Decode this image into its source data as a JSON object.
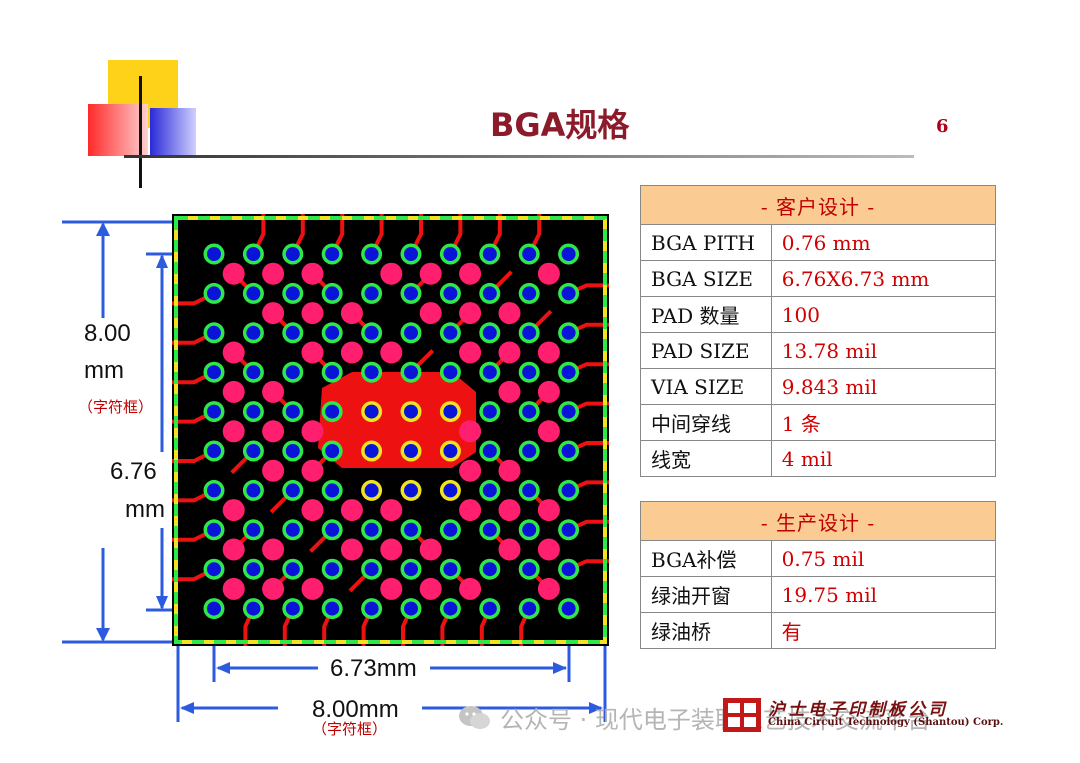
{
  "header": {
    "title": "BGA规格",
    "page_number": "6"
  },
  "dimensions": {
    "outer_height": "8.00",
    "outer_height_unit": "mm",
    "outer_height_note": "（字符框）",
    "inner_height": "6.76",
    "inner_height_unit": "mm",
    "inner_width": "6.73mm",
    "outer_width": "8.00mm",
    "outer_width_note": "（字符框）"
  },
  "customer_design": {
    "header": "- 客户设计 -",
    "rows": [
      {
        "key": "BGA PITH",
        "value": "0.76 mm"
      },
      {
        "key": "BGA SIZE",
        "value": "6.76X6.73 mm"
      },
      {
        "key": "PAD 数量",
        "value": "100"
      },
      {
        "key": "PAD SIZE",
        "value": "13.78 mil"
      },
      {
        "key": "VIA SIZE",
        "value": "9.843 mil"
      },
      {
        "key": "中间穿线",
        "value": "1 条"
      },
      {
        "key": "线宽",
        "value": "4 mil"
      }
    ]
  },
  "production_design": {
    "header": "- 生产设计 -",
    "rows": [
      {
        "key": "BGA补偿",
        "value": "0.75 mil"
      },
      {
        "key": "绿油开窗",
        "value": "19.75 mil"
      },
      {
        "key": "绿油桥",
        "value": "有"
      }
    ]
  },
  "watermark": {
    "text": "公众号 · 现代电子装联工艺技术交流平台",
    "logo_text": "沪士电子印制板公司",
    "logo_subtext": "China Circuit Technology (Shantou) Corp."
  },
  "colors": {
    "title": "#8b1a2b",
    "value_red": "#d00000",
    "table_header_bg": "#fbcb94",
    "board_bg": "#000000",
    "copper": "#ee1111",
    "pad_blue": "#0a14d8",
    "pad_ring_green": "#2ee84a",
    "via_pink": "#ff1f6e",
    "outline_yellow": "#f2e320",
    "dimension_blue": "#2d5be0"
  }
}
